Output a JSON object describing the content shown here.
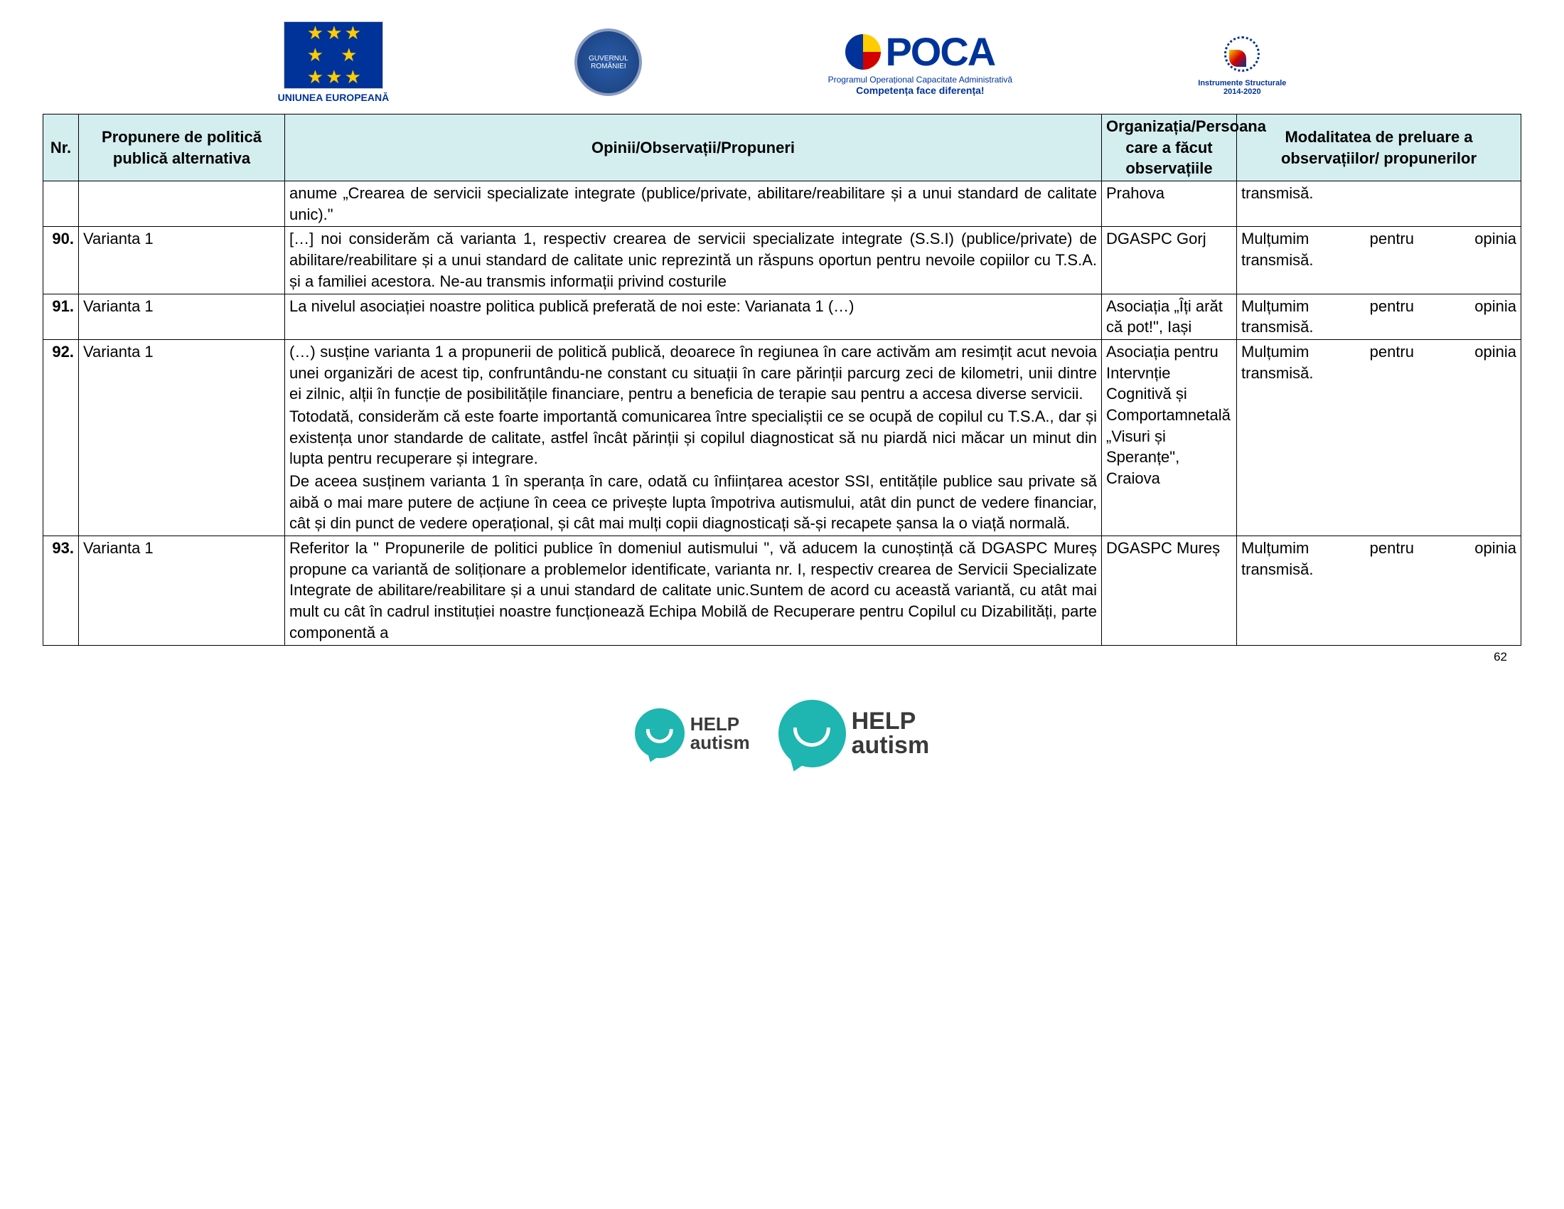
{
  "page_number": "62",
  "header": {
    "eu_label": "UNIUNEA EUROPEANĂ",
    "gov_label": "GUVERNUL ROMÂNIEI",
    "poca_main": "POCA",
    "poca_line1": "Programul Operațional Capacitate Administrativă",
    "poca_line2": "Competența face diferența!",
    "struct_line1": "Instrumente Structurale",
    "struct_line2": "2014-2020"
  },
  "columns": {
    "nr": "Nr.",
    "prop": "Propunere de politică publică alternativa",
    "opin": "Opinii/Observații/Propuneri",
    "org": "Organizația/Persoana care a făcut observațiile",
    "mod": "Modalitatea de preluare a observațiilor/ propunerilor"
  },
  "rows": [
    {
      "nr": "",
      "prop": "",
      "opin": "anume „Crearea de servicii specializate integrate (publice/private, abilitare/reabilitare și a unui standard de calitate unic).\"",
      "org": "Prahova",
      "mod": "transmisă.",
      "mod_justify": false
    },
    {
      "nr": "90.",
      "prop": "Varianta 1",
      "opin": "[…] noi considerăm că varianta 1, respectiv crearea de servicii specializate integrate (S.S.I) (publice/private) de abilitare/reabilitare și a unui standard de calitate unic reprezintă un răspuns oportun pentru nevoile copiilor cu T.S.A. și a familiei acestora. Ne-au transmis informații privind costurile",
      "org": "DGASPC Gorj",
      "mod_line1": "Mulțumim pentru opinia",
      "mod_line2": "transmisă.",
      "mod_justify": true
    },
    {
      "nr": "91.",
      "prop": "Varianta 1",
      "opin": "La nivelul asociației noastre politica publică preferată de noi este: Varianata 1 (…)",
      "org": "Asociația „Îți arăt că pot!\", Iași",
      "mod_line1": "Mulțumim pentru opinia",
      "mod_line2": "transmisă.",
      "mod_justify": true
    },
    {
      "nr": "92.",
      "prop": "Varianta 1",
      "opin_p1": "(…) susține varianta 1 a propunerii de politică publică, deoarece în regiunea în care activăm am resimțit acut nevoia unei organizări  de acest tip, confruntându-ne constant cu situații în care părinții parcurg zeci de kilometri, unii dintre ei zilnic, alții în funcție de posibilitățile financiare, pentru a beneficia de terapie sau pentru a accesa diverse servicii.",
      "opin_p2": "Totodată, considerăm că este foarte importantă comunicarea între specialiștii ce se ocupă de copilul cu T.S.A., dar și existența unor standarde de calitate, astfel încât părinții și copilul diagnosticat să nu piardă nici măcar un minut din lupta pentru recuperare și integrare.",
      "opin_p3": "De aceea susținem varianta 1 în speranța în care, odată cu înființarea acestor SSI, entitățile publice sau private să aibă o mai mare putere de acțiune în ceea ce privește lupta împotriva autismului, atât din punct de vedere financiar, cât și din punct de vedere operațional, și cât mai mulți copii diagnosticați să-și recapete șansa la o viață normală.",
      "org": "Asociația pentru Intervnție Cognitivă și Comportamnetală „Visuri și Speranțe\", Craiova",
      "mod_line1": "Mulțumim pentru opinia",
      "mod_line2": "transmisă.",
      "mod_justify": true
    },
    {
      "nr": "93.",
      "prop": "Varianta 1",
      "opin": "Referitor la \" Propunerile de politici publice în domeniul autismului \", vă aducem la cunoștință că DGASPC Mureș propune ca variantă de soliționare a problemelor identificate, varianta nr. I, respectiv crearea de Servicii Specializate Integrate de abilitare/reabilitare și a unui standard de calitate unic.Suntem de acord cu această variantă, cu atât mai mult cu cât în cadrul instituției noastre funcționează Echipa Mobilă de Recuperare pentru Copilul cu Dizabilități, parte componentă a",
      "org": "DGASPC Mureș",
      "mod_line1": "Mulțumim pentru opinia",
      "mod_line2": "transmisă.",
      "mod_justify": true
    }
  ],
  "footer": {
    "help1": "HELP",
    "help1b": "autism",
    "help2": "HELP",
    "help2b": "autism"
  }
}
